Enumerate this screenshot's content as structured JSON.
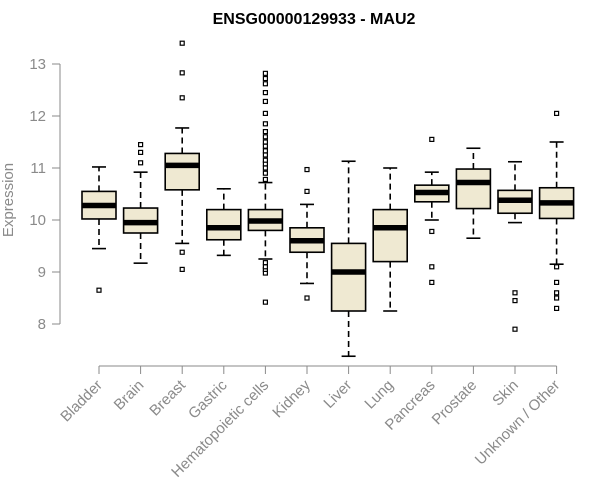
{
  "chart_data": {
    "type": "boxplot",
    "title": "ENSG00000129933 - MAU2",
    "xlabel": "",
    "ylabel": "Expression",
    "ylim": [
      7.2,
      13.5
    ],
    "yticks": [
      8,
      9,
      10,
      11,
      12,
      13
    ],
    "box_fill": "#efe9d2",
    "box_stroke": "#000000",
    "axis_color": "#8a8a8a",
    "categories": [
      "Bladder",
      "Brain",
      "Breast",
      "Gastric",
      "Hematopoietic cells",
      "Kidney",
      "Liver",
      "Lung",
      "Pancreas",
      "Prostate",
      "Skin",
      "Unknown / Other"
    ],
    "boxes": [
      {
        "name": "Bladder",
        "whisker_low": 9.45,
        "q1": 10.02,
        "median": 10.28,
        "q3": 10.55,
        "whisker_high": 11.02,
        "outliers": [
          8.65
        ]
      },
      {
        "name": "Brain",
        "whisker_low": 9.17,
        "q1": 9.75,
        "median": 9.95,
        "q3": 10.23,
        "whisker_high": 10.92,
        "outliers": [
          11.1,
          11.3,
          11.45
        ]
      },
      {
        "name": "Breast",
        "whisker_low": 9.55,
        "q1": 10.58,
        "median": 11.05,
        "q3": 11.28,
        "whisker_high": 11.77,
        "outliers": [
          9.05,
          9.38,
          12.35,
          12.83,
          13.4
        ]
      },
      {
        "name": "Gastric",
        "whisker_low": 9.32,
        "q1": 9.62,
        "median": 9.85,
        "q3": 10.2,
        "whisker_high": 10.6,
        "outliers": []
      },
      {
        "name": "Hematopoietic cells",
        "whisker_low": 9.25,
        "q1": 9.8,
        "median": 9.98,
        "q3": 10.2,
        "whisker_high": 10.72,
        "outliers": [
          8.42,
          8.98,
          9.05,
          9.1,
          9.18,
          10.78,
          10.9,
          11.0,
          11.08,
          11.15,
          11.25,
          11.33,
          11.42,
          11.5,
          11.6,
          11.7,
          11.85,
          12.05,
          12.28,
          12.45,
          12.62,
          12.72,
          12.82
        ]
      },
      {
        "name": "Kidney",
        "whisker_low": 8.78,
        "q1": 9.38,
        "median": 9.6,
        "q3": 9.85,
        "whisker_high": 10.3,
        "outliers": [
          8.5,
          10.55,
          10.97
        ]
      },
      {
        "name": "Liver",
        "whisker_low": 7.38,
        "q1": 8.25,
        "median": 9.0,
        "q3": 9.55,
        "whisker_high": 11.13,
        "outliers": []
      },
      {
        "name": "Lung",
        "whisker_low": 8.25,
        "q1": 9.2,
        "median": 9.85,
        "q3": 10.2,
        "whisker_high": 11.0,
        "outliers": []
      },
      {
        "name": "Pancreas",
        "whisker_low": 10.0,
        "q1": 10.35,
        "median": 10.53,
        "q3": 10.67,
        "whisker_high": 10.92,
        "outliers": [
          8.8,
          9.1,
          9.78,
          11.55
        ]
      },
      {
        "name": "Prostate",
        "whisker_low": 9.65,
        "q1": 10.22,
        "median": 10.72,
        "q3": 10.98,
        "whisker_high": 11.38,
        "outliers": []
      },
      {
        "name": "Skin",
        "whisker_low": 9.95,
        "q1": 10.13,
        "median": 10.38,
        "q3": 10.57,
        "whisker_high": 11.12,
        "outliers": [
          7.9,
          8.45,
          8.6
        ]
      },
      {
        "name": "Unknown / Other",
        "whisker_low": 9.15,
        "q1": 10.03,
        "median": 10.33,
        "q3": 10.62,
        "whisker_high": 11.5,
        "outliers": [
          8.3,
          8.5,
          8.6,
          8.8,
          9.1,
          12.05
        ]
      }
    ]
  }
}
